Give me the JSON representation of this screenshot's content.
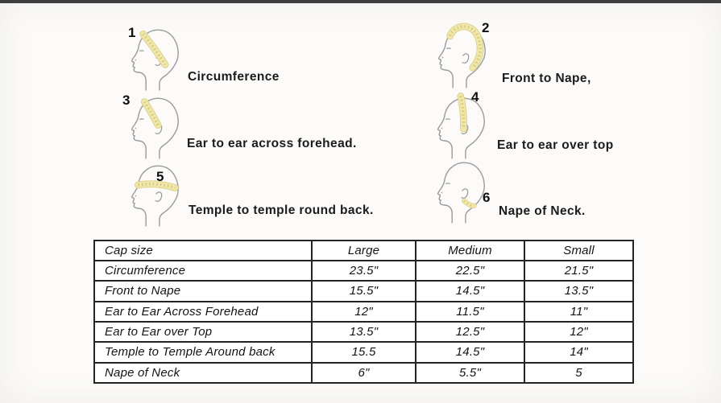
{
  "colors": {
    "top_strip": "#3e3e3e",
    "tape_fill": "#efe7ab",
    "tape_edge": "#dbcf85",
    "tape_dash": "#c9b95f",
    "head_outline": "#9b9b9b",
    "table_border": "#242424",
    "text": "#141414"
  },
  "diagrams": [
    {
      "num": "1",
      "label": "Circumference",
      "tape": "circumference"
    },
    {
      "num": "2",
      "label": "Front to Nape,",
      "tape": "front-nape"
    },
    {
      "num": "3",
      "label": "Ear to ear across forehead.",
      "tape": "ear-forehead"
    },
    {
      "num": "4",
      "label": "Ear to ear over top",
      "tape": "ear-top"
    },
    {
      "num": "5",
      "label": "Temple to temple round back.",
      "tape": "temple"
    },
    {
      "num": "6",
      "label": "Nape of Neck.",
      "tape": "nape"
    }
  ],
  "table": {
    "columns": [
      "Cap size",
      "Large",
      "Medium",
      "Small"
    ],
    "rows": [
      [
        "Circumference",
        "23.5\"",
        "22.5\"",
        "21.5\""
      ],
      [
        "Front to Nape",
        "15.5\"",
        "14.5\"",
        "13.5\""
      ],
      [
        "Ear to Ear Across Forehead",
        "12\"",
        "11.5\"",
        "11\""
      ],
      [
        "Ear to Ear over Top",
        "13.5\"",
        "12.5\"",
        "12\""
      ],
      [
        "Temple to Temple Around back",
        "15.5",
        "14.5\"",
        "14\""
      ],
      [
        "Nape of Neck",
        "6\"",
        "5.5\"",
        "5"
      ]
    ]
  }
}
